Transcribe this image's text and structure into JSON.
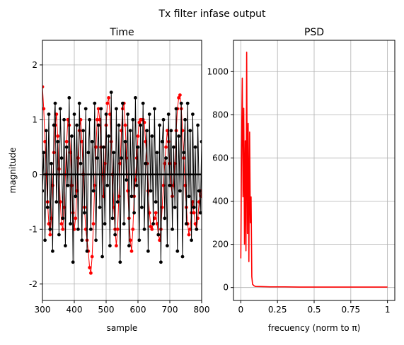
{
  "figure_title": "Tx filter infase output",
  "chart_data": [
    {
      "type": "line",
      "title": "Time",
      "xlabel": "sample",
      "ylabel": "magnitude",
      "xlim": [
        300,
        800
      ],
      "ylim": [
        -2.3,
        2.45
      ],
      "xticks": [
        300,
        400,
        500,
        600,
        700,
        800
      ],
      "yticks": [
        -2,
        -1,
        0,
        1,
        2
      ],
      "grid": true,
      "markers": "dots",
      "series": [
        {
          "color": "#ff0000",
          "x": [
            300,
            304,
            308,
            312,
            316,
            320,
            324,
            328,
            332,
            336,
            340,
            344,
            348,
            352,
            356,
            360,
            364,
            368,
            372,
            376,
            380,
            384,
            388,
            392,
            396,
            400,
            404,
            408,
            412,
            416,
            420,
            424,
            428,
            432,
            436,
            440,
            444,
            448,
            452,
            456,
            460,
            464,
            468,
            472,
            476,
            480,
            484,
            488,
            492,
            496,
            500,
            504,
            508,
            512,
            516,
            520,
            524,
            528,
            532,
            536,
            540,
            544,
            548,
            552,
            556,
            560,
            564,
            568,
            572,
            576,
            580,
            584,
            588,
            592,
            596,
            600,
            604,
            608,
            612,
            616,
            620,
            624,
            628,
            632,
            636,
            640,
            644,
            648,
            652,
            656,
            660,
            664,
            668,
            672,
            676,
            680,
            684,
            688,
            692,
            696,
            700,
            704,
            708,
            712,
            716,
            720,
            724,
            728,
            732,
            736,
            740,
            744,
            748,
            752,
            756,
            760,
            764,
            768,
            772,
            776,
            780,
            784,
            788,
            792,
            796,
            800
          ],
          "y": [
            1.6,
            1.2,
            0.6,
            0.0,
            -0.5,
            -0.9,
            -1.1,
            -0.8,
            -0.2,
            0.4,
            0.9,
            1.1,
            0.7,
            0.1,
            -0.5,
            -0.9,
            -1.0,
            -0.6,
            0.0,
            0.6,
            1.0,
            0.9,
            0.4,
            -0.2,
            -0.7,
            -1.0,
            -0.8,
            -0.3,
            0.3,
            0.8,
            1.0,
            0.6,
            0.0,
            -0.6,
            -1.0,
            -1.2,
            -1.4,
            -1.7,
            -1.8,
            -1.5,
            -0.9,
            -0.2,
            0.5,
            1.0,
            1.2,
            1.0,
            0.5,
            0.0,
            -0.4,
            0.2,
            0.9,
            1.3,
            1.4,
            1.1,
            0.6,
            0.0,
            -0.6,
            -1.0,
            -1.3,
            -1.0,
            -0.4,
            0.2,
            0.8,
            1.2,
            1.3,
            0.9,
            0.3,
            -0.3,
            -0.8,
            -1.2,
            -1.4,
            -1.0,
            -0.4,
            -0.1,
            0.3,
            0.7,
            0.95,
            1.0,
            1.0,
            1.0,
            0.95,
            0.6,
            0.2,
            -0.3,
            -0.7,
            -0.95,
            -1.0,
            -0.9,
            -0.8,
            -0.7,
            -0.9,
            -1.1,
            -1.2,
            -1.0,
            -0.6,
            -0.2,
            0.2,
            0.5,
            0.8,
            0.6,
            0.2,
            -0.2,
            -0.4,
            -0.2,
            0.2,
            0.8,
            1.2,
            1.4,
            1.45,
            1.2,
            0.8,
            0.3,
            -0.2,
            -0.6,
            -0.9,
            -1.1,
            -1.0,
            -0.7,
            -0.5,
            -0.7,
            -0.9,
            -1.0,
            -0.8,
            -0.5,
            -0.3,
            -0.4
          ]
        },
        {
          "color": "#000000",
          "x": [
            300,
            304,
            308,
            312,
            316,
            320,
            324,
            328,
            332,
            336,
            340,
            344,
            348,
            352,
            356,
            360,
            364,
            368,
            372,
            376,
            380,
            384,
            388,
            392,
            396,
            400,
            404,
            408,
            412,
            416,
            420,
            424,
            428,
            432,
            436,
            440,
            444,
            448,
            452,
            456,
            460,
            464,
            468,
            472,
            476,
            480,
            484,
            488,
            492,
            496,
            500,
            504,
            508,
            512,
            516,
            520,
            524,
            528,
            532,
            536,
            540,
            544,
            548,
            552,
            556,
            560,
            564,
            568,
            572,
            576,
            580,
            584,
            588,
            592,
            596,
            600,
            604,
            608,
            612,
            616,
            620,
            624,
            628,
            632,
            636,
            640,
            644,
            648,
            652,
            656,
            660,
            664,
            668,
            672,
            676,
            680,
            684,
            688,
            692,
            696,
            700,
            704,
            708,
            712,
            716,
            720,
            724,
            728,
            732,
            736,
            740,
            744,
            748,
            752,
            756,
            760,
            764,
            768,
            772,
            776,
            780,
            784,
            788,
            792,
            796,
            800
          ],
          "y": [
            -0.3,
            0.4,
            -1.2,
            0.8,
            -0.6,
            1.1,
            -1.0,
            0.2,
            -1.4,
            0.9,
            1.3,
            -0.5,
            0.6,
            -1.1,
            1.2,
            0.3,
            -0.8,
            1.0,
            -1.3,
            0.5,
            -0.2,
            1.4,
            -0.9,
            0.7,
            -1.6,
            1.1,
            -0.4,
            0.9,
            -1.0,
            1.3,
            0.2,
            -1.2,
            0.8,
            -0.7,
            1.2,
            -1.4,
            0.4,
            1.0,
            -1.0,
            0.6,
            -0.3,
            1.3,
            -1.2,
            0.3,
            0.9,
            -0.6,
            1.2,
            -1.5,
            0.5,
            -0.9,
            1.1,
            -0.2,
            0.7,
            -1.3,
            1.5,
            -0.8,
            0.4,
            -1.1,
            1.2,
            -0.5,
            0.9,
            -1.6,
            0.3,
            1.3,
            -0.9,
            0.6,
            -0.1,
            1.1,
            -1.3,
            0.8,
            -0.4,
            1.0,
            -0.7,
            1.4,
            -0.2,
            0.5,
            -1.2,
            0.9,
            -0.6,
            1.3,
            -1.0,
            0.2,
            0.8,
            -1.4,
            1.1,
            -0.3,
            0.7,
            -0.9,
            1.2,
            -0.5,
            0.4,
            -1.1,
            0.9,
            -1.6,
            0.6,
            1.0,
            -0.8,
            0.3,
            -1.3,
            1.1,
            -0.2,
            0.8,
            -1.0,
            0.5,
            -0.6,
            1.2,
            -1.4,
            0.7,
            -0.3,
            1.3,
            -1.5,
            0.4,
            1.0,
            -0.9,
            1.3,
            -0.4,
            0.8,
            -1.2,
            1.1,
            -0.6,
            0.5,
            -1.0,
            0.9,
            -0.3,
            -0.7,
            0.6
          ]
        },
        {
          "color": "#000000",
          "x": [
            300,
            800
          ],
          "y": [
            0.0,
            0.0
          ]
        }
      ]
    },
    {
      "type": "line",
      "title": "PSD",
      "xlabel": "frecuency (norm to π)",
      "ylabel": "",
      "xlim": [
        -0.05,
        1.05
      ],
      "ylim": [
        -60,
        1145
      ],
      "xticks": [
        0.0,
        0.25,
        0.5,
        0.75,
        1.0
      ],
      "yticks": [
        0,
        200,
        400,
        600,
        800,
        1000
      ],
      "grid": true,
      "series": [
        {
          "color": "#ff0000",
          "x": [
            0.0,
            0.005,
            0.01,
            0.015,
            0.02,
            0.025,
            0.03,
            0.035,
            0.04,
            0.045,
            0.05,
            0.055,
            0.06,
            0.065,
            0.07,
            0.075,
            0.08,
            0.09,
            0.1,
            0.15,
            0.2,
            0.3,
            0.4,
            0.5,
            0.6,
            0.7,
            0.8,
            0.9,
            1.0
          ],
          "y": [
            135,
            650,
            970,
            420,
            830,
            200,
            680,
            170,
            1090,
            250,
            760,
            120,
            720,
            300,
            420,
            50,
            15,
            8,
            5,
            4,
            3,
            3,
            2,
            2,
            2,
            2,
            2,
            2,
            2
          ]
        }
      ]
    }
  ]
}
